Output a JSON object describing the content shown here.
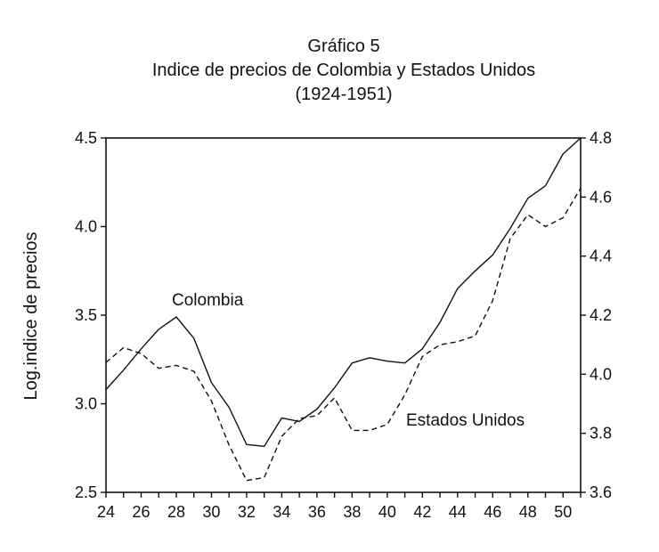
{
  "chart_data": {
    "type": "line",
    "title": [
      "Gráfico 5",
      "Indice de precios de Colombia y Estados Unidos",
      "(1924-1951)"
    ],
    "ylabel": "Log.indice de precios",
    "ylabel_right": "",
    "x": [
      24,
      25,
      26,
      27,
      28,
      29,
      30,
      31,
      32,
      33,
      34,
      35,
      36,
      37,
      38,
      39,
      40,
      41,
      42,
      43,
      44,
      45,
      46,
      47,
      48,
      49,
      50,
      51
    ],
    "xlim": [
      24,
      51
    ],
    "xticks": [
      "24",
      "26",
      "28",
      "30",
      "32",
      "34",
      "36",
      "38",
      "40",
      "42",
      "44",
      "46",
      "48",
      "50"
    ],
    "ylim_left": [
      2.5,
      4.5
    ],
    "yticks_left": [
      "2.5",
      "3.0",
      "3.5",
      "4.0",
      "4.5"
    ],
    "ylim_right": [
      3.6,
      4.8
    ],
    "yticks_right": [
      "3.6",
      "3.8",
      "4.0",
      "4.2",
      "4.4",
      "4.6",
      "4.8"
    ],
    "grid": false,
    "series": [
      {
        "name": "Colombia",
        "axis": "left",
        "style": "solid",
        "color": "#111111",
        "values": [
          3.08,
          3.19,
          3.31,
          3.42,
          3.49,
          3.37,
          3.12,
          2.98,
          2.77,
          2.76,
          2.92,
          2.9,
          2.97,
          3.09,
          3.23,
          3.26,
          3.24,
          3.23,
          3.31,
          3.46,
          3.65,
          3.75,
          3.84,
          3.99,
          4.16,
          4.23,
          4.41,
          4.5
        ]
      },
      {
        "name": "Estados Unidos",
        "axis": "right",
        "style": "dashed",
        "color": "#111111",
        "values": [
          4.04,
          4.09,
          4.07,
          4.02,
          4.03,
          4.01,
          3.91,
          3.76,
          3.64,
          3.65,
          3.79,
          3.85,
          3.86,
          3.92,
          3.81,
          3.81,
          3.83,
          3.93,
          4.06,
          4.1,
          4.11,
          4.13,
          4.25,
          4.46,
          4.54,
          4.5,
          4.53,
          4.63
        ]
      }
    ]
  }
}
